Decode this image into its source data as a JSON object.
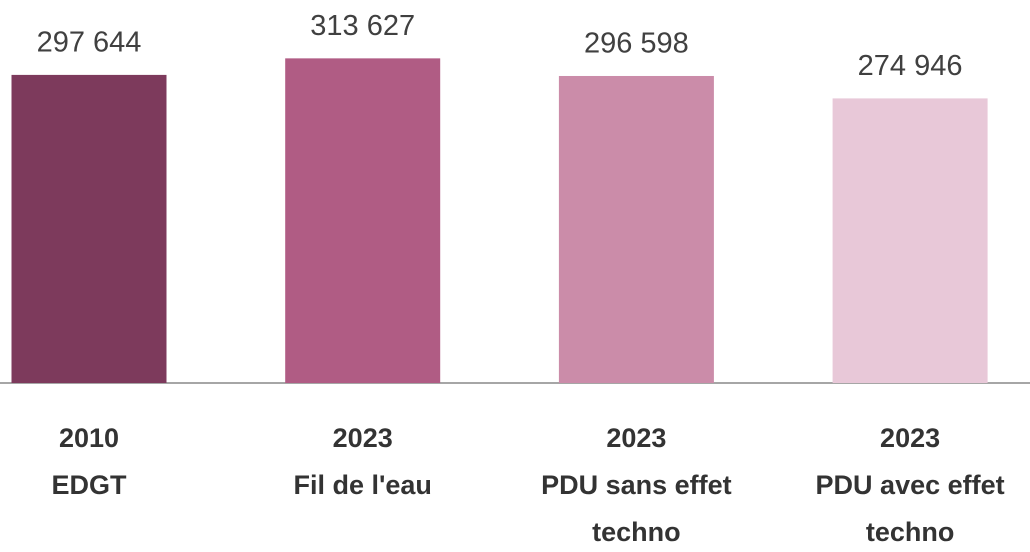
{
  "chart_data": {
    "type": "bar",
    "categories": [
      [
        "2010",
        "EDGT"
      ],
      [
        "2023",
        "Fil de l'eau"
      ],
      [
        "2023",
        "PDU sans effet",
        "techno"
      ],
      [
        "2023",
        "PDU avec effet",
        "techno"
      ]
    ],
    "values": [
      297644,
      313627,
      296598,
      274946
    ],
    "value_labels": [
      "297 644",
      "313 627",
      "296 598",
      "274 946"
    ],
    "colors": [
      "#7d3a5c",
      "#b05c84",
      "#cb8ca9",
      "#e8c8d8"
    ],
    "ylim": [
      0,
      370000
    ]
  }
}
